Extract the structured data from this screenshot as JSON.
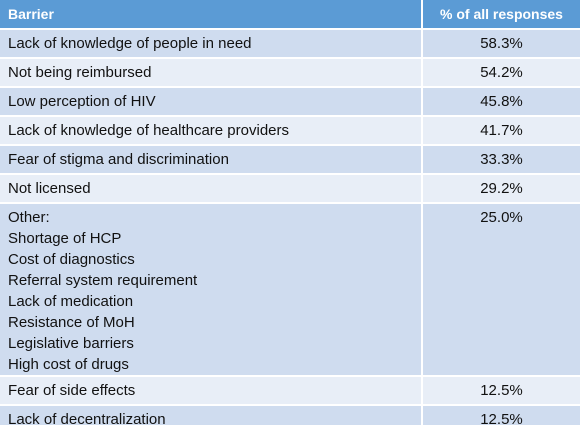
{
  "table": {
    "headers": {
      "barrier": "Barrier",
      "percent": "% of all responses"
    },
    "rows": [
      {
        "barrier": "Lack of knowledge of people in need",
        "percent": "58.3%"
      },
      {
        "barrier": "Not being reimbursed",
        "percent": "54.2%"
      },
      {
        "barrier": "Low perception of HIV",
        "percent": "45.8%"
      },
      {
        "barrier": "Lack of knowledge of healthcare providers",
        "percent": "41.7%"
      },
      {
        "barrier": "Fear of stigma and discrimination",
        "percent": "33.3%"
      },
      {
        "barrier": "Not licensed",
        "percent": "29.2%"
      }
    ],
    "other": {
      "label": "Other:",
      "items": [
        "Shortage of HCP",
        "Cost of diagnostics",
        "Referral system requirement",
        "Lack of medication",
        "Resistance of MoH",
        "Legislative barriers",
        "High cost of drugs"
      ],
      "percent": "25.0%"
    },
    "rows_after": [
      {
        "barrier": "Fear of side effects",
        "percent": "12.5%"
      },
      {
        "barrier": "Lack of decentralization",
        "percent": "12.5%"
      }
    ]
  },
  "colors": {
    "header": "#5b9bd5",
    "row_dark": "#cfdcef",
    "row_light": "#e8eef7"
  }
}
